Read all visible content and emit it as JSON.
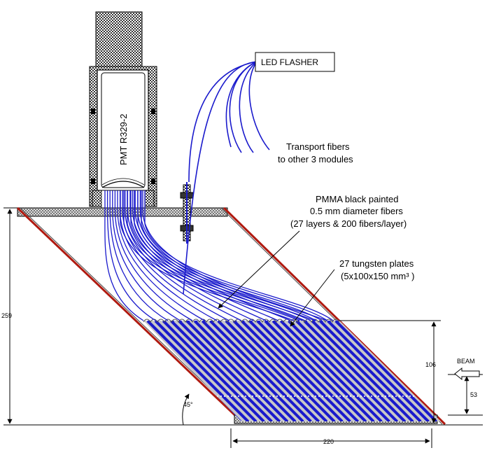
{
  "labels": {
    "pmt": "PMT R329-2",
    "led": "LED FLASHER",
    "transport_line1": "Transport fibers",
    "transport_line2": "to other 3 modules",
    "pmma_line1": "PMMA black painted",
    "pmma_line2": "0.5 mm diameter fibers",
    "pmma_line3": "(27 layers & 200 fibers/layer)",
    "tungsten_line1": "27 tungsten plates",
    "tungsten_line2": "(5x100x150 mm³ )",
    "beam": "BEAM"
  },
  "dimensions": {
    "height_total": "259",
    "height_active": "106",
    "beam_offset": "53",
    "width_bottom": "220",
    "angle": "45°"
  },
  "colors": {
    "fiber_blue": "#1a1acc",
    "plate_red": "#b01a10",
    "hatch_gray": "#888888"
  }
}
